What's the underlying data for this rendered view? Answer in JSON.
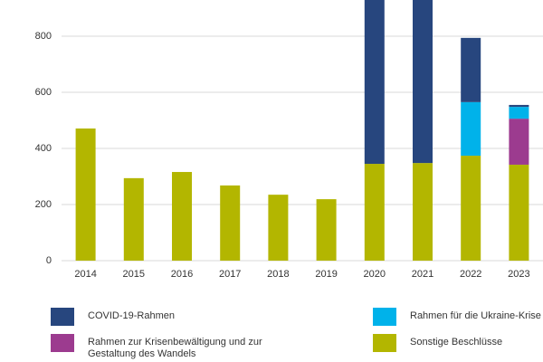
{
  "chart_data": {
    "type": "stacked_bar",
    "categories": [
      "2014",
      "2015",
      "2016",
      "2017",
      "2018",
      "2019",
      "2020",
      "2021",
      "2022",
      "2023"
    ],
    "series": [
      {
        "name": "Sonstige Beschlüsse",
        "color": "#b3b600",
        "values": [
          471,
          294,
          316,
          268,
          235,
          219,
          345,
          348,
          374,
          342
        ]
      },
      {
        "name": "Rahmen zur Krisenbewältigung und zur Gestaltung des Wandels",
        "color": "#9c3b8f",
        "values": [
          null,
          null,
          null,
          null,
          null,
          null,
          null,
          null,
          null,
          164
        ]
      },
      {
        "name": "Rahmen für die Ukraine-Krise",
        "color": "#00b2ea",
        "values": [
          null,
          null,
          null,
          null,
          null,
          null,
          null,
          null,
          191,
          42
        ]
      },
      {
        "name": "COVID-19-Rahmen",
        "color": "#27467e",
        "values": [
          null,
          null,
          null,
          null,
          null,
          null,
          650,
          650,
          229,
          7
        ]
      }
    ],
    "ylim": [
      0,
      929
    ],
    "yticks": [
      0,
      200,
      400,
      600,
      800
    ],
    "grid": true
  }
}
